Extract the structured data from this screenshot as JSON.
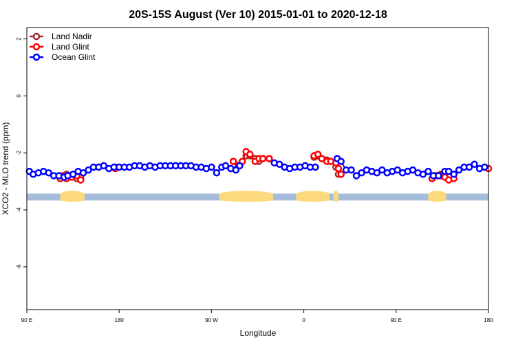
{
  "chart_data": {
    "type": "scatter",
    "title": "20S-15S August (Ver 10)   2015-01-01 to 2020-12-18",
    "xlabel": "Longitude",
    "ylabel": "XCO2 - MLO trend (ppm)",
    "xlim": [
      90,
      450
    ],
    "ylim": [
      -7.5,
      2.4
    ],
    "x_ticks": [
      {
        "value": 90,
        "label": "90 E"
      },
      {
        "value": 162,
        "label": "180"
      },
      {
        "value": 234,
        "label": "90 W"
      },
      {
        "value": 306,
        "label": "0"
      },
      {
        "value": 378,
        "label": "90 E"
      },
      {
        "value": 450,
        "label": "180"
      }
    ],
    "y_ticks": [
      {
        "value": 2,
        "label": "2"
      },
      {
        "value": 0,
        "label": "0"
      },
      {
        "value": -2,
        "label": "-2"
      },
      {
        "value": -4,
        "label": "-4"
      },
      {
        "value": -6,
        "label": "-6"
      }
    ],
    "legend": [
      {
        "name": "Land Nadir",
        "color": "#a52a2a"
      },
      {
        "name": "Land Glint",
        "color": "#ff0000"
      },
      {
        "name": "Ocean Glint",
        "color": "#0000ff"
      }
    ],
    "legend_position": "top-left",
    "surface_band": {
      "y": -3.55,
      "ocean_color": "#a5bddb",
      "land_color": "#fdd97d",
      "land_segments": [
        [
          116,
          135
        ],
        [
          240,
          282
        ],
        [
          300,
          326
        ],
        [
          329,
          333
        ],
        [
          403,
          417
        ]
      ]
    },
    "series": [
      {
        "name": "Land Nadir",
        "color": "#a52a2a",
        "x": [
          116,
          118,
          121,
          123,
          125,
          129,
          132,
          159,
          251,
          255,
          258,
          261,
          264,
          268,
          271,
          274,
          279,
          314,
          317,
          320,
          324,
          327,
          331,
          333,
          406,
          409,
          413,
          416
        ],
        "y": [
          -2.85,
          -2.85,
          -2.75,
          -2.8,
          -2.8,
          -2.9,
          -2.85,
          -2.5,
          -2.3,
          -2.45,
          -2.3,
          -2.1,
          -2.1,
          -2.2,
          -2.3,
          -2.2,
          -2.2,
          -2.15,
          -2.1,
          -2.2,
          -2.25,
          -2.3,
          -2.5,
          -2.75,
          -2.9,
          -2.8,
          -2.75,
          -2.85
        ]
      },
      {
        "name": "Land Glint",
        "color": "#ff0000",
        "x": [
          116,
          118,
          121,
          123,
          125,
          129,
          132,
          159,
          251,
          255,
          258,
          261,
          264,
          268,
          271,
          274,
          279,
          314,
          317,
          320,
          324,
          327,
          331,
          333,
          335,
          406,
          409,
          413,
          416,
          419,
          423,
          450
        ],
        "y": [
          -2.9,
          -2.8,
          -2.9,
          -2.8,
          -2.85,
          -2.8,
          -2.95,
          -2.55,
          -2.3,
          -2.45,
          -2.3,
          -1.95,
          -2.05,
          -2.3,
          -2.2,
          -2.2,
          -2.2,
          -2.1,
          -2.05,
          -2.2,
          -2.3,
          -2.3,
          -2.35,
          -2.55,
          -2.75,
          -2.9,
          -2.8,
          -2.8,
          -2.85,
          -2.95,
          -2.9,
          -2.55
        ]
      },
      {
        "name": "Ocean Glint",
        "color": "#0000ff",
        "x": [
          92,
          95,
          99,
          103,
          107,
          111,
          115,
          119,
          122,
          126,
          130,
          134,
          138,
          142,
          146,
          150,
          154,
          158,
          162,
          166,
          170,
          174,
          178,
          182,
          186,
          190,
          194,
          198,
          202,
          206,
          210,
          214,
          218,
          222,
          226,
          230,
          234,
          238,
          242,
          245,
          249,
          253,
          256,
          283,
          287,
          291,
          295,
          299,
          303,
          307,
          311,
          315,
          332,
          335,
          339,
          343,
          347,
          351,
          355,
          359,
          363,
          367,
          371,
          375,
          379,
          383,
          387,
          391,
          395,
          399,
          403,
          407,
          411,
          416,
          419,
          423,
          427,
          431,
          435,
          439,
          443,
          447
        ],
        "y": [
          -2.65,
          -2.75,
          -2.7,
          -2.65,
          -2.7,
          -2.8,
          -2.8,
          -2.85,
          -2.8,
          -2.75,
          -2.65,
          -2.7,
          -2.6,
          -2.5,
          -2.5,
          -2.45,
          -2.55,
          -2.5,
          -2.5,
          -2.5,
          -2.5,
          -2.45,
          -2.45,
          -2.5,
          -2.45,
          -2.5,
          -2.45,
          -2.45,
          -2.45,
          -2.45,
          -2.45,
          -2.45,
          -2.45,
          -2.5,
          -2.5,
          -2.55,
          -2.5,
          -2.7,
          -2.5,
          -2.45,
          -2.55,
          -2.6,
          -2.45,
          -2.35,
          -2.4,
          -2.5,
          -2.55,
          -2.5,
          -2.5,
          -2.45,
          -2.5,
          -2.5,
          -2.2,
          -2.3,
          -2.6,
          -2.6,
          -2.8,
          -2.7,
          -2.6,
          -2.65,
          -2.7,
          -2.6,
          -2.7,
          -2.65,
          -2.6,
          -2.7,
          -2.65,
          -2.6,
          -2.7,
          -2.75,
          -2.65,
          -2.8,
          -2.8,
          -2.65,
          -2.65,
          -2.75,
          -2.6,
          -2.5,
          -2.5,
          -2.4,
          -2.55,
          -2.5
        ]
      }
    ]
  }
}
